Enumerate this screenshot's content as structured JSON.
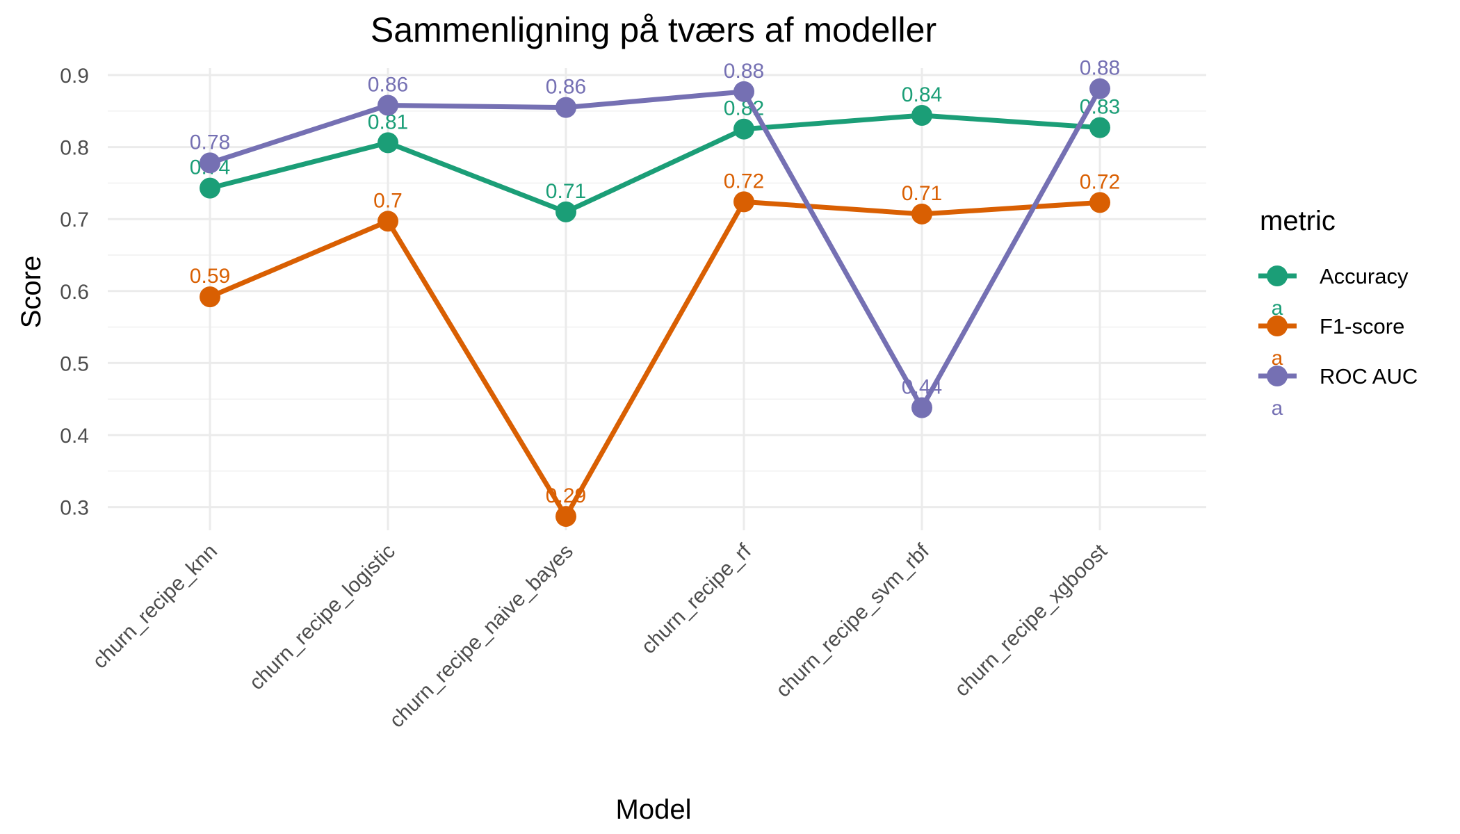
{
  "chart_data": {
    "type": "line",
    "title": "Sammenligning på tværs af modeller",
    "xlabel": "Model",
    "ylabel": "Score",
    "ylim": [
      0.25,
      0.92
    ],
    "yticks": [
      "0.3",
      "0.4",
      "0.5",
      "0.6",
      "0.7",
      "0.8",
      "0.9"
    ],
    "grid": true,
    "legend_position": "right",
    "legend_title": "metric",
    "legend_key_glyph": "a",
    "categories": [
      "churn_recipe_knn",
      "churn_recipe_logistic",
      "churn_recipe_naive_bayes",
      "churn_recipe_rf",
      "churn_recipe_svm_rbf",
      "churn_recipe_xgboost"
    ],
    "series": [
      {
        "name": "Accuracy",
        "color": "#1b9e77",
        "values": [
          0.743,
          0.806,
          0.71,
          0.825,
          0.844,
          0.827
        ],
        "labels": [
          "0.74",
          "0.81",
          "0.71",
          "0.82",
          "0.84",
          "0.83"
        ]
      },
      {
        "name": "F1-score",
        "color": "#d95f02",
        "values": [
          0.592,
          0.697,
          0.287,
          0.724,
          0.707,
          0.723
        ],
        "labels": [
          "0.59",
          "0.7",
          "0.29",
          "0.72",
          "0.71",
          "0.72"
        ]
      },
      {
        "name": "ROC AUC",
        "color": "#7570b3",
        "values": [
          0.778,
          0.858,
          0.855,
          0.877,
          0.438,
          0.881
        ],
        "labels": [
          "0.78",
          "0.86",
          "0.86",
          "0.88",
          "0.44",
          "0.88"
        ]
      }
    ]
  }
}
